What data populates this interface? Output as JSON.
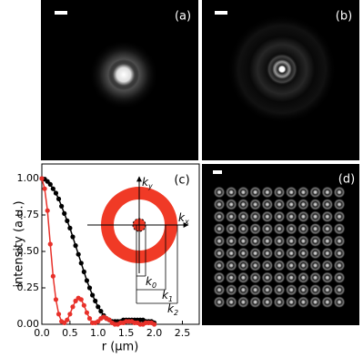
{
  "panel_labels": [
    "(a)",
    "(b)",
    "(d)"
  ],
  "chart_data": {
    "type": "line",
    "panel_label": "(c)",
    "x_label": "r (μm)",
    "y_label": "intensity (a.u.)",
    "x": [
      0,
      0.05,
      0.1,
      0.15,
      0.2,
      0.25,
      0.3,
      0.35,
      0.4,
      0.45,
      0.5,
      0.55,
      0.6,
      0.65,
      0.7,
      0.75,
      0.8,
      0.85,
      0.9,
      0.95,
      1.0,
      1.05,
      1.1,
      1.15,
      1.2,
      1.25,
      1.3,
      1.35,
      1.4,
      1.45,
      1.5,
      1.55,
      1.6,
      1.65,
      1.7,
      1.75,
      1.8,
      1.85,
      1.9,
      1.95,
      2.0
    ],
    "series": [
      {
        "color": "#000000",
        "values": [
          1.0,
          0.996,
          0.98,
          0.96,
          0.93,
          0.9,
          0.86,
          0.81,
          0.76,
          0.71,
          0.66,
          0.6,
          0.54,
          0.48,
          0.42,
          0.36,
          0.3,
          0.25,
          0.2,
          0.16,
          0.12,
          0.09,
          0.06,
          0.04,
          0.03,
          0.02,
          0.02,
          0.02,
          0.02,
          0.03,
          0.03,
          0.03,
          0.03,
          0.03,
          0.03,
          0.03,
          0.03,
          0.02,
          0.02,
          0.02,
          0.01
        ]
      },
      {
        "color": "#e8312a",
        "values": [
          1.0,
          0.93,
          0.78,
          0.55,
          0.33,
          0.17,
          0.07,
          0.02,
          0.01,
          0.03,
          0.07,
          0.12,
          0.16,
          0.18,
          0.17,
          0.13,
          0.08,
          0.04,
          0.01,
          0.01,
          0.02,
          0.04,
          0.05,
          0.04,
          0.03,
          0.01,
          0.0,
          0.0,
          0.01,
          0.01,
          0.02,
          0.02,
          0.02,
          0.01,
          0.01,
          0.0,
          0.0,
          0.01,
          0.01,
          0.01,
          0.0
        ]
      }
    ],
    "xlim": [
      0,
      2.8
    ],
    "ylim": [
      0,
      1.1
    ],
    "xticks": [
      {
        "value": 0,
        "label": "0.0"
      },
      {
        "value": 0.5,
        "label": "0.5"
      },
      {
        "value": 1,
        "label": "1.0"
      },
      {
        "value": 1.5,
        "label": "1.5"
      },
      {
        "value": 2,
        "label": "2.0"
      },
      {
        "value": 2.5,
        "label": "2.5"
      }
    ],
    "yticks": [
      {
        "value": 0,
        "label": "0.00"
      },
      {
        "value": 0.25,
        "label": "0.25"
      },
      {
        "value": 0.5,
        "label": "0.50"
      },
      {
        "value": 0.75,
        "label": "0.75"
      },
      {
        "value": 1,
        "label": "1.00"
      }
    ],
    "inset_labels": [
      {
        "text": "k",
        "sub": "y"
      },
      {
        "text": "k",
        "sub": "x"
      },
      {
        "text": "k",
        "sub": "0"
      },
      {
        "text": "k",
        "sub": "1"
      },
      {
        "text": "k",
        "sub": "2"
      }
    ]
  }
}
